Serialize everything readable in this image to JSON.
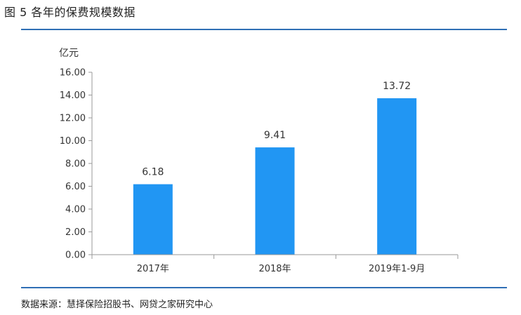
{
  "figure": {
    "title": "图 5   各年的保费规模数据",
    "source": "数据来源：慧择保险招股书、网贷之家研究中心"
  },
  "colors": {
    "bar": "#2196f3",
    "rule": "#2f6fb5",
    "axis": "#999999"
  },
  "chart_data": {
    "type": "bar",
    "categories": [
      "2017年",
      "2018年",
      "2019年1-9月"
    ],
    "values": [
      6.18,
      9.41,
      13.72
    ],
    "data_labels": [
      "6.18",
      "9.41",
      "13.72"
    ],
    "ylabel": "亿元",
    "ylim": [
      0,
      16
    ],
    "yticks": [
      0,
      2,
      4,
      6,
      8,
      10,
      12,
      14,
      16
    ],
    "ytick_labels": [
      "0.00",
      "2.00",
      "4.00",
      "6.00",
      "8.00",
      "10.00",
      "12.00",
      "14.00",
      "16.00"
    ],
    "grid": false,
    "legend": "none"
  }
}
